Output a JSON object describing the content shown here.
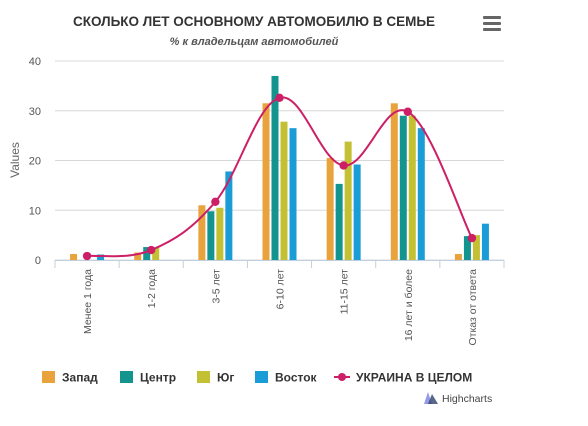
{
  "chart_data": {
    "type": "bar",
    "title": "СКОЛЬКО ЛЕТ ОСНОВНОМУ АВТОМОБИЛЮ В СЕМЬЕ",
    "subtitle": "% к владельцам автомобилей",
    "ylabel": "Values",
    "xlabel": "",
    "ylim": [
      0,
      40
    ],
    "yticks": [
      0,
      10,
      20,
      30,
      40
    ],
    "grid": true,
    "legend_position": "bottom",
    "categories": [
      "Менее 1 года",
      "1-2 года",
      "3-5 лет",
      "6-10 лет",
      "11-15 лет",
      "16 лет и более",
      "Отказ от ответа"
    ],
    "series": [
      {
        "name": "Запад",
        "type": "bar",
        "color": "#E8A33D",
        "values": [
          1.2,
          1.5,
          11.0,
          31.5,
          20.5,
          31.5,
          1.2
        ]
      },
      {
        "name": "Центр",
        "type": "bar",
        "color": "#14948E",
        "values": [
          0.0,
          2.6,
          9.8,
          37.0,
          15.3,
          29.0,
          4.8
        ]
      },
      {
        "name": "Юг",
        "type": "bar",
        "color": "#C3C133",
        "values": [
          0.0,
          2.5,
          10.5,
          27.8,
          23.8,
          29.0,
          5.0
        ]
      },
      {
        "name": "Восток",
        "type": "bar",
        "color": "#1A9CD6",
        "values": [
          1.1,
          0.0,
          17.8,
          26.5,
          19.2,
          26.5,
          7.3
        ]
      },
      {
        "name": "УКРАИНА В ЦЕЛОМ",
        "type": "line",
        "color": "#CC1F66",
        "values": [
          0.8,
          2.0,
          11.7,
          32.6,
          19.0,
          29.8,
          4.4
        ]
      }
    ]
  },
  "credits": "Highcharts",
  "menu_icon": "hamburger-menu-icon"
}
